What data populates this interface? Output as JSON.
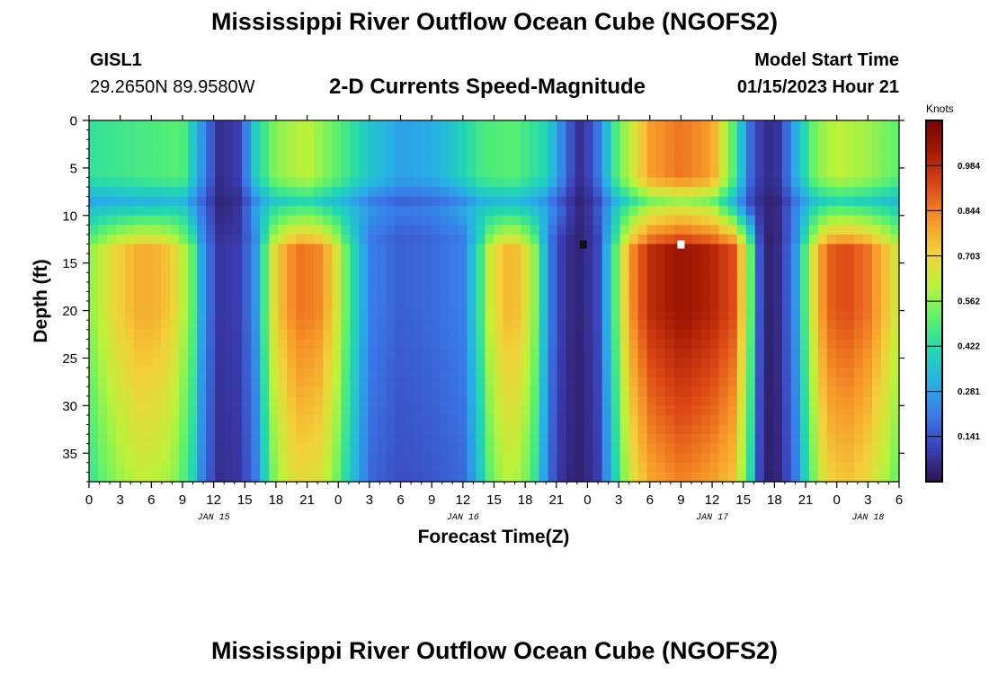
{
  "header": {
    "title": "Mississippi River Outflow Ocean Cube (NGOFS2)",
    "station": "GISL1",
    "coords": "29.2650N  89.9580W",
    "subtitle": "2-D Currents Speed-Magnitude",
    "model_start_label": "Model Start Time",
    "model_start_value": "01/15/2023 Hour 21"
  },
  "footer": {
    "title": "Mississippi River Outflow Ocean Cube (NGOFS2)"
  },
  "colors": {
    "colormap": [
      "#2c1450",
      "#3b3fb5",
      "#3a79e8",
      "#27b0e6",
      "#22d8b0",
      "#5ff26a",
      "#bdf23a",
      "#f3d03a",
      "#f69327",
      "#dd4916",
      "#a81a04",
      "#7a0403"
    ],
    "marker_dark": "#111111",
    "marker_light": "#ffffff"
  },
  "chart_data": {
    "type": "heatmap",
    "title": "2-D Currents Speed-Magnitude",
    "xlabel": "Forecast Time(Z)",
    "ylabel": "Depth (ft)",
    "x_range_hours": [
      0,
      78
    ],
    "ylim": [
      0,
      38
    ],
    "x_ticks": [
      {
        "h": 0,
        "label": "0"
      },
      {
        "h": 3,
        "label": "3"
      },
      {
        "h": 6,
        "label": "6"
      },
      {
        "h": 9,
        "label": "9"
      },
      {
        "h": 12,
        "label": "12"
      },
      {
        "h": 15,
        "label": "15"
      },
      {
        "h": 18,
        "label": "18"
      },
      {
        "h": 21,
        "label": "21"
      },
      {
        "h": 24,
        "label": "0"
      },
      {
        "h": 27,
        "label": "3"
      },
      {
        "h": 30,
        "label": "6"
      },
      {
        "h": 33,
        "label": "9"
      },
      {
        "h": 36,
        "label": "12"
      },
      {
        "h": 39,
        "label": "15"
      },
      {
        "h": 42,
        "label": "18"
      },
      {
        "h": 45,
        "label": "21"
      },
      {
        "h": 48,
        "label": "0"
      },
      {
        "h": 51,
        "label": "3"
      },
      {
        "h": 54,
        "label": "6"
      },
      {
        "h": 57,
        "label": "9"
      },
      {
        "h": 60,
        "label": "12"
      },
      {
        "h": 63,
        "label": "15"
      },
      {
        "h": 66,
        "label": "18"
      },
      {
        "h": 69,
        "label": "21"
      },
      {
        "h": 72,
        "label": "0"
      },
      {
        "h": 75,
        "label": "3"
      },
      {
        "h": 78,
        "label": "6"
      }
    ],
    "date_labels": [
      {
        "h": 12,
        "label": "JAN 15"
      },
      {
        "h": 36,
        "label": "JAN 16"
      },
      {
        "h": 60,
        "label": "JAN 17"
      },
      {
        "h": 75,
        "label": "JAN 18"
      }
    ],
    "y_ticks": [
      0,
      5,
      10,
      15,
      20,
      25,
      30,
      35
    ],
    "colorbar": {
      "unit": "Knots",
      "min": 0,
      "max": 1.125,
      "ticks": [
        "0.984",
        "0.844",
        "0.703",
        "0.562",
        "0.422",
        "0.281",
        "0.141"
      ],
      "tick_values": [
        0.984,
        0.844,
        0.703,
        0.562,
        0.422,
        0.281,
        0.141
      ]
    },
    "surface_profile_hours": [
      0,
      3,
      6,
      9,
      10.5,
      12.5,
      14.5,
      16,
      18,
      21,
      24,
      27,
      30,
      33,
      35,
      38,
      41,
      44,
      46.5,
      47.5,
      49,
      51,
      54,
      57,
      60,
      62,
      64,
      65.5,
      66.5,
      68,
      70,
      72,
      75,
      78
    ],
    "surface_speed_knots": [
      0.44,
      0.46,
      0.48,
      0.5,
      0.3,
      0.06,
      0.1,
      0.38,
      0.56,
      0.62,
      0.5,
      0.36,
      0.28,
      0.3,
      0.36,
      0.48,
      0.5,
      0.4,
      0.12,
      0.05,
      0.2,
      0.52,
      0.8,
      0.86,
      0.8,
      0.5,
      0.12,
      0.06,
      0.08,
      0.3,
      0.55,
      0.62,
      0.58,
      0.5
    ],
    "deep_profile_hours": [
      0,
      1,
      3,
      5,
      7,
      8.5,
      10,
      11,
      12.5,
      14.5,
      16,
      17,
      18,
      20,
      22,
      23.5,
      25,
      27,
      30,
      33,
      36,
      37.5,
      38.5,
      40,
      41.5,
      43,
      44,
      45,
      46.5,
      47.5,
      49,
      50.5,
      52,
      54,
      57,
      60,
      62,
      63.5,
      64.5,
      65.5,
      66.5,
      68,
      69.5,
      71,
      73,
      75,
      77,
      78
    ],
    "deep_speed_knots": [
      0.55,
      0.62,
      0.72,
      0.78,
      0.76,
      0.68,
      0.5,
      0.25,
      0.08,
      0.1,
      0.25,
      0.5,
      0.72,
      0.86,
      0.84,
      0.72,
      0.48,
      0.22,
      0.16,
      0.18,
      0.22,
      0.42,
      0.62,
      0.76,
      0.74,
      0.55,
      0.3,
      0.12,
      0.05,
      0.04,
      0.12,
      0.45,
      0.8,
      0.98,
      1.05,
      1.0,
      0.92,
      0.6,
      0.15,
      0.03,
      0.06,
      0.25,
      0.62,
      0.88,
      0.92,
      0.86,
      0.72,
      0.62
    ],
    "markers": [
      {
        "hour": 47.6,
        "depth": 13,
        "name": "min-marker",
        "color": "dark"
      },
      {
        "hour": 57.0,
        "depth": 13,
        "name": "max-marker",
        "color": "light"
      }
    ]
  }
}
